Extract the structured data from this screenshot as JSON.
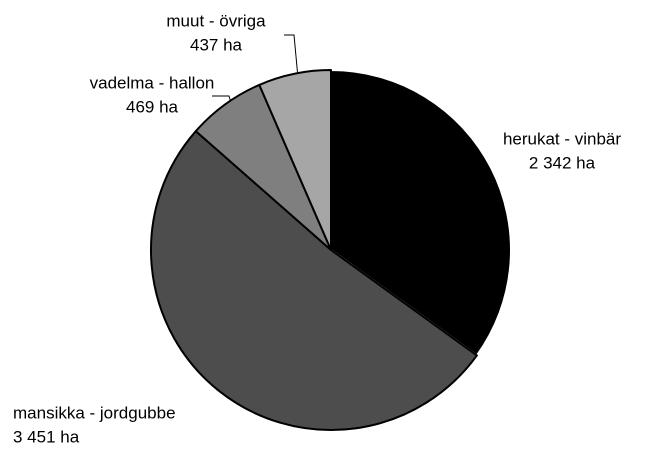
{
  "chart_data": {
    "type": "pie",
    "categories": [
      "herukat - vinbär",
      "mansikka - jordgubbe",
      "vadelma - hallon",
      "muut - övriga"
    ],
    "values": [
      2342,
      3451,
      469,
      437
    ],
    "value_labels": [
      "2 342 ha",
      "3 451 ha",
      "469 ha",
      "437 ha"
    ],
    "colors": [
      "#000000",
      "#4d4d4d",
      "#7f7f7f",
      "#a6a6a6"
    ]
  }
}
